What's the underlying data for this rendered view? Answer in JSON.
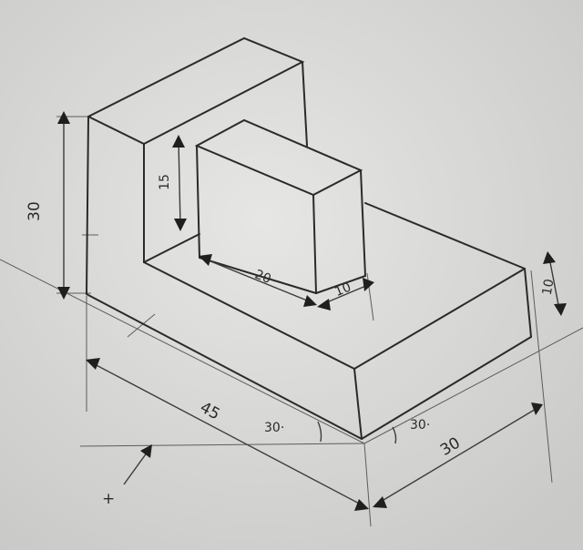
{
  "dimensions": {
    "overall_height": "30",
    "upright_width": "15",
    "block_length": "20",
    "block_width": "10",
    "base_thickness": "10",
    "base_length": "45",
    "base_depth": "30"
  },
  "angles": {
    "left": "30·",
    "right": "30·"
  },
  "origin_mark": "+"
}
